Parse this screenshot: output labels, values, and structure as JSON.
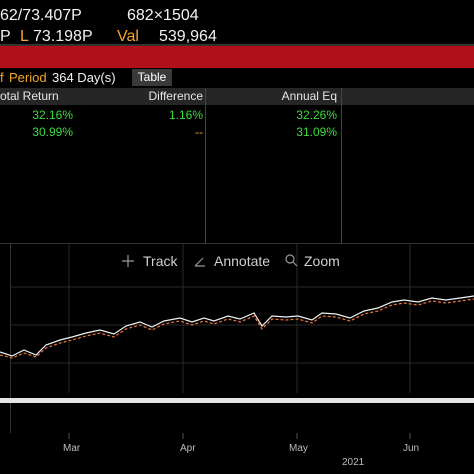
{
  "header": {
    "line1": {
      "price": "62/73.407P",
      "size": "682×1504"
    },
    "line2": {
      "p": "P",
      "l_label": "L",
      "l_value": "73.198P",
      "val_label": "Val",
      "val_value": "539,964"
    }
  },
  "period": {
    "prefix": "f",
    "label": "Period",
    "value": "364 Day(s)",
    "button": "Table"
  },
  "table": {
    "columns": [
      "otal Return",
      "Difference",
      "Annual Eq"
    ],
    "rows": [
      [
        "32.16%",
        "1.16%",
        "32.26%"
      ],
      [
        "30.99%",
        "--",
        "31.09%"
      ]
    ]
  },
  "toolbar": {
    "track": "Track",
    "annotate": "Annotate",
    "zoom": "Zoom"
  },
  "x_axis": {
    "labels": [
      "Mar",
      "Apr",
      "May",
      "Jun"
    ],
    "year": "2021"
  }
}
